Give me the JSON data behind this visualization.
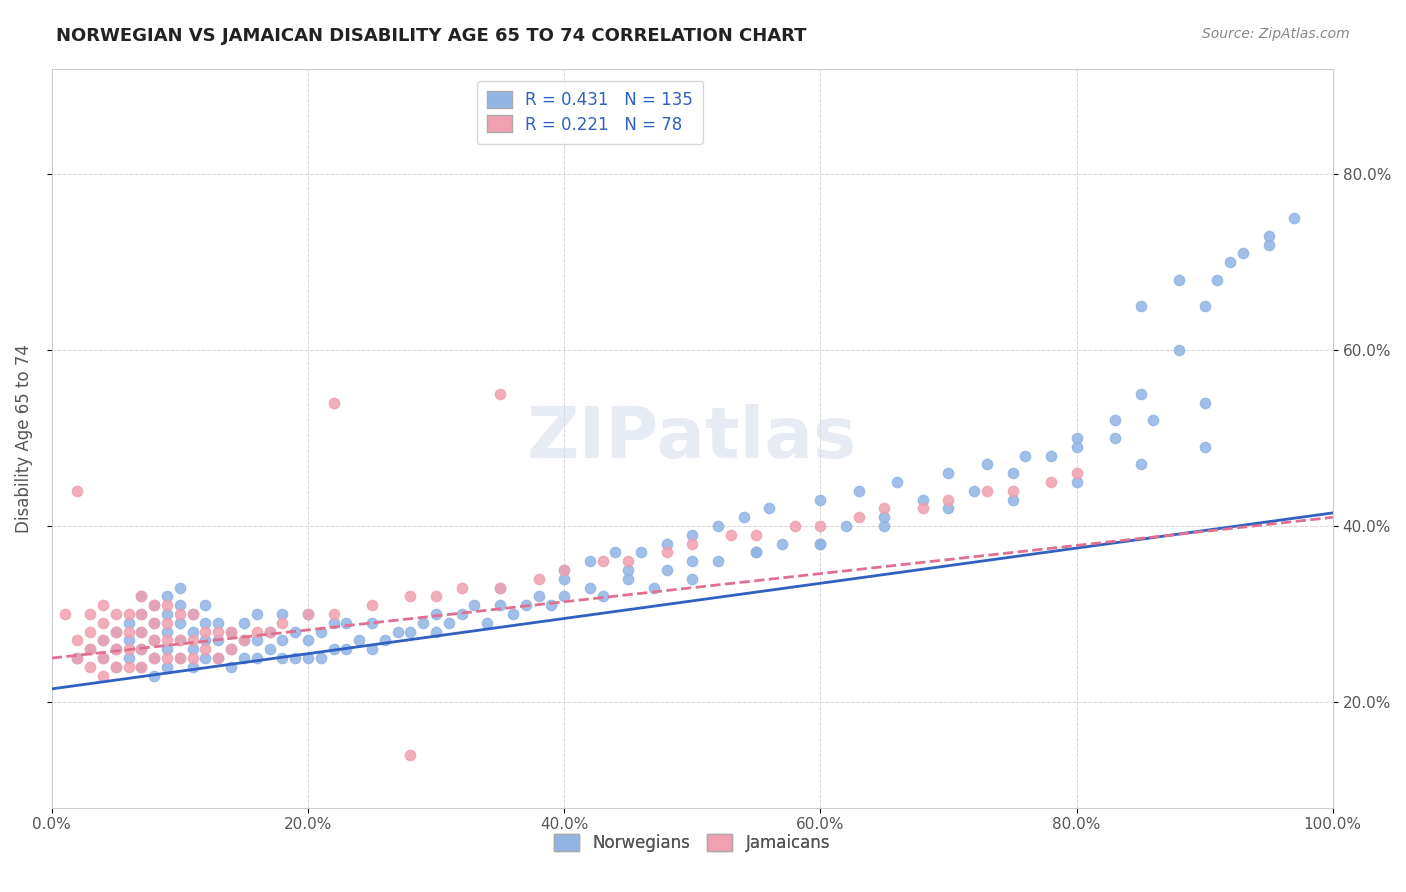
{
  "title": "NORWEGIAN VS JAMAICAN DISABILITY AGE 65 TO 74 CORRELATION CHART",
  "source": "Source: ZipAtlas.com",
  "xlabel_bottom": "",
  "ylabel": "Disability Age 65 to 74",
  "xlim": [
    0.0,
    1.0
  ],
  "ylim": [
    0.08,
    0.92
  ],
  "norwegian_R": 0.431,
  "norwegian_N": 135,
  "jamaican_R": 0.221,
  "jamaican_N": 78,
  "norwegian_color": "#92b4e3",
  "jamaican_color": "#f0a0b0",
  "norwegian_line_color": "#3060c0",
  "jamaican_line_color": "#e07090",
  "background_color": "#ffffff",
  "grid_color": "#cccccc",
  "watermark_text": "ZIPatlas",
  "xtick_labels": [
    "0.0%",
    "20.0%",
    "40.0%",
    "60.0%",
    "80.0%",
    "100.0%"
  ],
  "xtick_positions": [
    0.0,
    0.2,
    0.4,
    0.6,
    0.8,
    1.0
  ],
  "ytick_labels": [
    "20.0%",
    "40.0%",
    "60.0%",
    "80.0%"
  ],
  "ytick_positions": [
    0.2,
    0.4,
    0.6,
    0.8
  ],
  "legend_labels": [
    "Norwegians",
    "Jamaicans"
  ],
  "norwegian_scatter": {
    "x": [
      0.02,
      0.03,
      0.04,
      0.04,
      0.05,
      0.05,
      0.05,
      0.06,
      0.06,
      0.06,
      0.07,
      0.07,
      0.07,
      0.07,
      0.07,
      0.08,
      0.08,
      0.08,
      0.08,
      0.08,
      0.09,
      0.09,
      0.09,
      0.09,
      0.09,
      0.1,
      0.1,
      0.1,
      0.1,
      0.1,
      0.11,
      0.11,
      0.11,
      0.11,
      0.12,
      0.12,
      0.12,
      0.12,
      0.13,
      0.13,
      0.13,
      0.14,
      0.14,
      0.14,
      0.15,
      0.15,
      0.15,
      0.16,
      0.16,
      0.16,
      0.17,
      0.17,
      0.18,
      0.18,
      0.18,
      0.19,
      0.19,
      0.2,
      0.2,
      0.2,
      0.21,
      0.21,
      0.22,
      0.22,
      0.23,
      0.23,
      0.24,
      0.25,
      0.25,
      0.26,
      0.27,
      0.28,
      0.29,
      0.3,
      0.3,
      0.31,
      0.32,
      0.33,
      0.34,
      0.35,
      0.36,
      0.37,
      0.38,
      0.39,
      0.4,
      0.42,
      0.43,
      0.45,
      0.47,
      0.48,
      0.5,
      0.52,
      0.55,
      0.57,
      0.6,
      0.62,
      0.65,
      0.68,
      0.72,
      0.75,
      0.78,
      0.8,
      0.83,
      0.85,
      0.88,
      0.9,
      0.91,
      0.93,
      0.95,
      0.4,
      0.42,
      0.44,
      0.46,
      0.48,
      0.5,
      0.52,
      0.54,
      0.56,
      0.6,
      0.63,
      0.66,
      0.7,
      0.73,
      0.76,
      0.8,
      0.83,
      0.86,
      0.9,
      0.85,
      0.88,
      0.92,
      0.95,
      0.97,
      0.35,
      0.4,
      0.45,
      0.5,
      0.55,
      0.6,
      0.65,
      0.7,
      0.75,
      0.8,
      0.85,
      0.9
    ],
    "y": [
      0.25,
      0.26,
      0.25,
      0.27,
      0.24,
      0.26,
      0.28,
      0.25,
      0.27,
      0.29,
      0.24,
      0.26,
      0.28,
      0.3,
      0.32,
      0.25,
      0.27,
      0.29,
      0.31,
      0.23,
      0.24,
      0.26,
      0.28,
      0.3,
      0.32,
      0.25,
      0.27,
      0.29,
      0.31,
      0.33,
      0.24,
      0.26,
      0.28,
      0.3,
      0.25,
      0.27,
      0.29,
      0.31,
      0.25,
      0.27,
      0.29,
      0.24,
      0.26,
      0.28,
      0.25,
      0.27,
      0.29,
      0.25,
      0.27,
      0.3,
      0.26,
      0.28,
      0.25,
      0.27,
      0.3,
      0.25,
      0.28,
      0.25,
      0.27,
      0.3,
      0.25,
      0.28,
      0.26,
      0.29,
      0.26,
      0.29,
      0.27,
      0.26,
      0.29,
      0.27,
      0.28,
      0.28,
      0.29,
      0.28,
      0.3,
      0.29,
      0.3,
      0.31,
      0.29,
      0.31,
      0.3,
      0.31,
      0.32,
      0.31,
      0.32,
      0.33,
      0.32,
      0.34,
      0.33,
      0.35,
      0.34,
      0.36,
      0.37,
      0.38,
      0.38,
      0.4,
      0.41,
      0.43,
      0.44,
      0.46,
      0.48,
      0.5,
      0.52,
      0.55,
      0.6,
      0.65,
      0.68,
      0.71,
      0.73,
      0.35,
      0.36,
      0.37,
      0.37,
      0.38,
      0.39,
      0.4,
      0.41,
      0.42,
      0.43,
      0.44,
      0.45,
      0.46,
      0.47,
      0.48,
      0.49,
      0.5,
      0.52,
      0.54,
      0.65,
      0.68,
      0.7,
      0.72,
      0.75,
      0.33,
      0.34,
      0.35,
      0.36,
      0.37,
      0.38,
      0.4,
      0.42,
      0.43,
      0.45,
      0.47,
      0.49
    ]
  },
  "jamaican_scatter": {
    "x": [
      0.01,
      0.02,
      0.02,
      0.02,
      0.03,
      0.03,
      0.03,
      0.03,
      0.04,
      0.04,
      0.04,
      0.04,
      0.04,
      0.05,
      0.05,
      0.05,
      0.05,
      0.06,
      0.06,
      0.06,
      0.06,
      0.07,
      0.07,
      0.07,
      0.07,
      0.07,
      0.08,
      0.08,
      0.08,
      0.08,
      0.09,
      0.09,
      0.09,
      0.09,
      0.1,
      0.1,
      0.1,
      0.11,
      0.11,
      0.11,
      0.12,
      0.12,
      0.13,
      0.13,
      0.14,
      0.14,
      0.15,
      0.16,
      0.17,
      0.18,
      0.2,
      0.22,
      0.25,
      0.28,
      0.3,
      0.32,
      0.35,
      0.38,
      0.4,
      0.43,
      0.45,
      0.48,
      0.5,
      0.53,
      0.55,
      0.58,
      0.6,
      0.63,
      0.65,
      0.68,
      0.7,
      0.73,
      0.75,
      0.78,
      0.8,
      0.22,
      0.28,
      0.35
    ],
    "y": [
      0.3,
      0.25,
      0.27,
      0.44,
      0.24,
      0.26,
      0.28,
      0.3,
      0.23,
      0.25,
      0.27,
      0.29,
      0.31,
      0.24,
      0.26,
      0.28,
      0.3,
      0.24,
      0.26,
      0.28,
      0.3,
      0.24,
      0.26,
      0.28,
      0.3,
      0.32,
      0.25,
      0.27,
      0.29,
      0.31,
      0.25,
      0.27,
      0.29,
      0.31,
      0.25,
      0.27,
      0.3,
      0.25,
      0.27,
      0.3,
      0.26,
      0.28,
      0.25,
      0.28,
      0.26,
      0.28,
      0.27,
      0.28,
      0.28,
      0.29,
      0.3,
      0.3,
      0.31,
      0.32,
      0.32,
      0.33,
      0.33,
      0.34,
      0.35,
      0.36,
      0.36,
      0.37,
      0.38,
      0.39,
      0.39,
      0.4,
      0.4,
      0.41,
      0.42,
      0.42,
      0.43,
      0.44,
      0.44,
      0.45,
      0.46,
      0.54,
      0.14,
      0.55
    ]
  },
  "norwegian_line": {
    "x0": 0.0,
    "x1": 1.0,
    "y0": 0.215,
    "y1": 0.415
  },
  "jamaican_line": {
    "x0": 0.0,
    "x1": 1.0,
    "y0": 0.25,
    "y1": 0.41
  }
}
